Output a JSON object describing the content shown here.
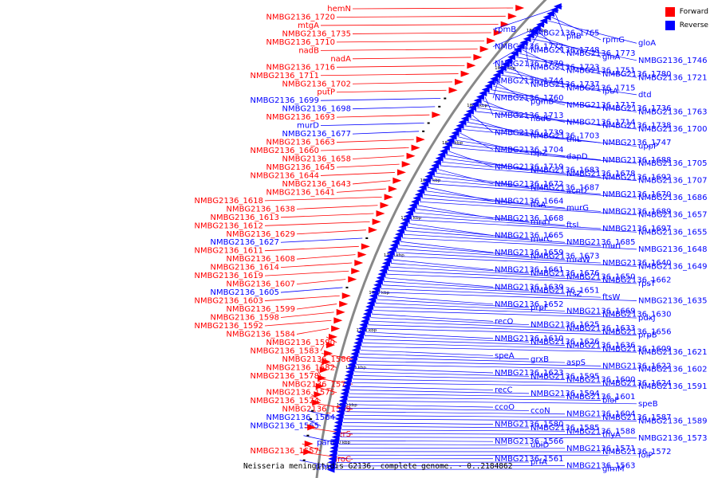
{
  "legend": {
    "forward_label": "Forward",
    "reverse_label": "Reverse",
    "forward_color": "#ff0000",
    "reverse_color": "#0000ff"
  },
  "caption": "Neisseria meningitidis G2136, complete genome. - 0..2184862",
  "colors": {
    "forward": "#ff0000",
    "reverse": "#0000ff",
    "backbone": "#888888"
  },
  "ruler_labels": [
    "1880 kbp",
    "1860 kbp",
    "1840 kbp",
    "1820 kbp",
    "1800 kbp",
    "1780 kbp",
    "1760 kbp",
    "1740 kbp",
    "1720 kbp",
    "1700 kbp",
    "1680 kbp",
    "1660 kbp"
  ],
  "left_labels": [
    {
      "text": "hemN",
      "strand": "forward"
    },
    {
      "text": "NMBG2136_1720",
      "strand": "forward"
    },
    {
      "text": "mtgA",
      "strand": "forward"
    },
    {
      "text": "NMBG2136_1735",
      "strand": "forward"
    },
    {
      "text": "NMBG2136_1710",
      "strand": "forward"
    },
    {
      "text": "nadB",
      "strand": "forward"
    },
    {
      "text": "nadA",
      "strand": "forward"
    },
    {
      "text": "NMBG2136_1716",
      "strand": "forward"
    },
    {
      "text": "NMBG2136_1711",
      "strand": "forward"
    },
    {
      "text": "NMBG2136_1702",
      "strand": "forward"
    },
    {
      "text": "putP",
      "strand": "forward"
    },
    {
      "text": "NMBG2136_1699",
      "strand": "reverse"
    },
    {
      "text": "NMBG2136_1698",
      "strand": "reverse"
    },
    {
      "text": "NMBG2136_1693",
      "strand": "forward"
    },
    {
      "text": "murD",
      "strand": "reverse"
    },
    {
      "text": "NMBG2136_1677",
      "strand": "reverse"
    },
    {
      "text": "NMBG2136_1663",
      "strand": "forward"
    },
    {
      "text": "NMBG2136_1660",
      "strand": "forward"
    },
    {
      "text": "NMBG2136_1658",
      "strand": "forward"
    },
    {
      "text": "NMBG2136_1645",
      "strand": "forward"
    },
    {
      "text": "NMBG2136_1644",
      "strand": "forward"
    },
    {
      "text": "NMBG2136_1643",
      "strand": "forward"
    },
    {
      "text": "NMBG2136_1641",
      "strand": "forward"
    },
    {
      "text": "NMBG2136_1618",
      "strand": "forward"
    },
    {
      "text": "NMBG2136_1638",
      "strand": "forward"
    },
    {
      "text": "NMBG2136_1613",
      "strand": "forward"
    },
    {
      "text": "NMBG2136_1612",
      "strand": "forward"
    },
    {
      "text": "NMBG2136_1629",
      "strand": "forward"
    },
    {
      "text": "NMBG2136_1627",
      "strand": "reverse"
    },
    {
      "text": "NMBG2136_1611",
      "strand": "forward"
    },
    {
      "text": "NMBG2136_1608",
      "strand": "forward"
    },
    {
      "text": "NMBG2136_1614",
      "strand": "forward"
    },
    {
      "text": "NMBG2136_1619",
      "strand": "forward"
    },
    {
      "text": "NMBG2136_1607",
      "strand": "forward"
    },
    {
      "text": "NMBG2136_1605",
      "strand": "reverse"
    },
    {
      "text": "NMBG2136_1603",
      "strand": "forward"
    },
    {
      "text": "NMBG2136_1599",
      "strand": "forward"
    },
    {
      "text": "NMBG2136_1598",
      "strand": "forward"
    },
    {
      "text": "NMBG2136_1592",
      "strand": "forward"
    },
    {
      "text": "NMBG2136_1584",
      "strand": "forward"
    },
    {
      "text": "NMBG2136_1590",
      "strand": "forward"
    },
    {
      "text": "NMBG2136_1583",
      "strand": "forward"
    },
    {
      "text": "NMBG2136_1586",
      "strand": "forward"
    },
    {
      "text": "NMBG2136_1582",
      "strand": "forward"
    },
    {
      "text": "NMBG2136_1578",
      "strand": "forward"
    },
    {
      "text": "NMBG2136_1579",
      "strand": "forward"
    },
    {
      "text": "NMBG2136_1575",
      "strand": "forward"
    },
    {
      "text": "NMBG2136_1574",
      "strand": "forward"
    },
    {
      "text": "NMBG2136_1569",
      "strand": "forward"
    },
    {
      "text": "NMBG2136_1564",
      "strand": "reverse"
    },
    {
      "text": "NMBG2136_1565",
      "strand": "reverse"
    },
    {
      "text": "serS",
      "strand": "forward"
    },
    {
      "text": "parE",
      "strand": "reverse"
    },
    {
      "text": "NMBG2136_1557",
      "strand": "forward"
    },
    {
      "text": "aroC",
      "strand": "forward"
    },
    {
      "text": "trmA",
      "strand": "reverse"
    }
  ],
  "right_labels": [
    "rpmB",
    "NMBG2136_1765",
    "pilB",
    "rpmG",
    "gloA",
    "NMBG2136_1772",
    "NMBG2136_1748",
    "NMBG2136_1773",
    "glnA",
    "NMBG2136_1746",
    "NMBG2136_1779",
    "NMBG2136_1723",
    "NMBG2136_1751",
    "NMBG2136_1780",
    "NMBG2136_1721",
    "NMBG2136_1744",
    "NMBG2136_1737",
    "NMBG2136_1715",
    "lptA",
    "dtd",
    "NMBG2136_1760",
    "pgmB",
    "NMBG2136_1717",
    "NMBG2136_1736",
    "NMBG2136_1763",
    "NMBG2136_1713",
    "nadC",
    "NMBG2136_1714",
    "NMBG2136_1738",
    "NMBG2136_1700",
    "NMBG2136_1739",
    "NMBG2136_1703",
    "thiL",
    "NMBG2136_1747",
    "uppP",
    "NMBG2136_1704",
    "ispZ",
    "dapD",
    "NMBG2136_1688",
    "NMBG2136_1705",
    "NMBG2136_1719",
    "NMBG2136_1683",
    "NMBG2136_1678",
    "NMBG2136_1692",
    "NMBG2136_1707",
    "NMBG2136_1672",
    "NMBG2136_1687",
    "acnD",
    "NMBG2136_1670",
    "NMBG2136_1686",
    "NMBG2136_1664",
    "ftsA",
    "murG",
    "NMBG2136_1689",
    "NMBG2136_1657",
    "NMBG2136_1668",
    "mraY",
    "ftsL",
    "NMBG2136_1697",
    "NMBG2136_1655",
    "NMBG2136_1665",
    "murC",
    "NMBG2136_1685",
    "murI",
    "NMBG2136_1648",
    "NMBG2136_1659",
    "NMBG2136_1673",
    "mraW",
    "NMBG2136_1640",
    "NMBG2136_1649",
    "NMBG2136_1661",
    "NMBG2136_1676",
    "NMBG2136_1650",
    "NMBG2136_1662",
    "rpsT",
    "NMBG2136_1639",
    "NMBG2136_1651",
    "ftsZ",
    "ftsW",
    "NMBG2136_1635",
    "NMBG2136_1652",
    "prpF",
    "NMBG2136_1669",
    "NMBG2136_1630",
    "pdxJ",
    "recO",
    "NMBG2136_1625",
    "NMBG2136_1633",
    "NMBG2136_1656",
    "prpB",
    "NMBG2136_1610",
    "NMBG2136_1626",
    "NMBG2136_1636",
    "NMBG2136_1609",
    "NMBG2136_1621",
    "speA",
    "grxB",
    "aspS",
    "NMBG2136_1622",
    "NMBG2136_1602",
    "NMBG2136_1623",
    "NMBG2136_1595",
    "NMBG2136_1600",
    "NMBG2136_1624",
    "NMBG2136_1591",
    "recC",
    "NMBG2136_1594",
    "NMBG2136_1601",
    "bioF",
    "speB",
    "ccoO",
    "ccoN",
    "NMBG2136_1604",
    "NMBG2136_1587",
    "NMBG2136_1589",
    "NMBG2136_1580",
    "NMBG2136_1585",
    "NMBG2136_1588",
    "thyA",
    "NMBG2136_1573",
    "NMBG2136_1566",
    "ubiD",
    "NMBG2136_1571",
    "NMBG2136_1572",
    "folP",
    "NMBG2136_1561",
    "prfA",
    "NMBG2136_1563",
    "glmM"
  ]
}
